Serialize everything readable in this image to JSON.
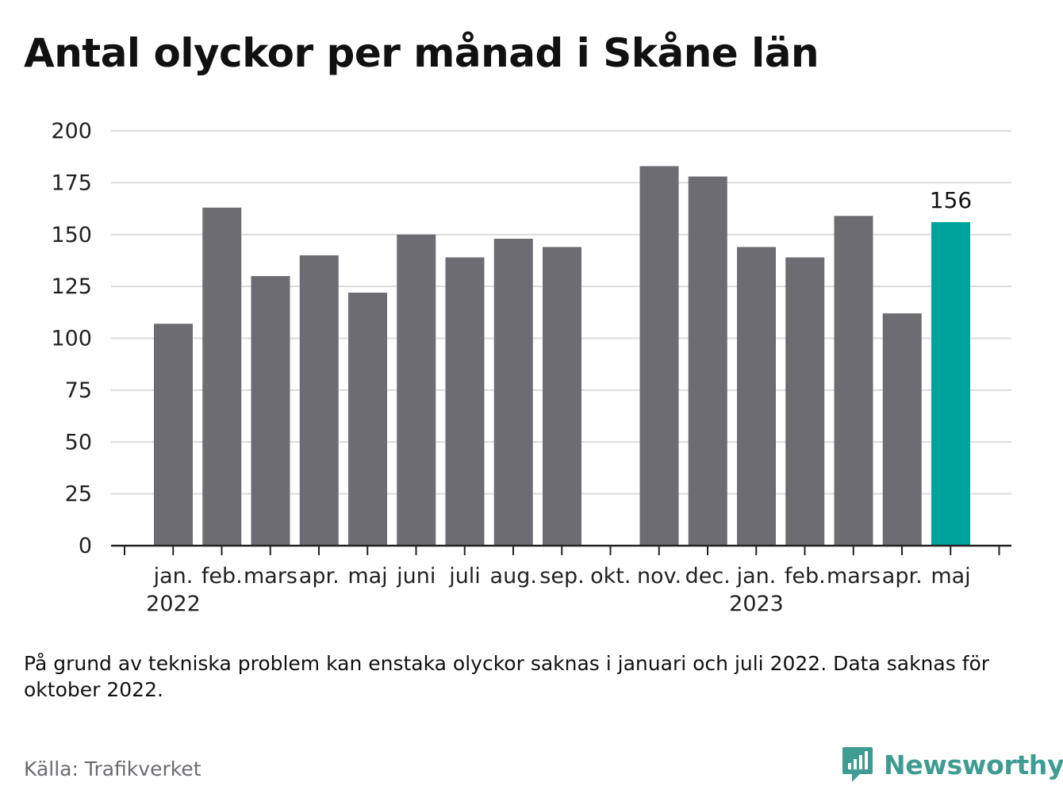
{
  "title": "Antal olyckor per månad i Skåne län",
  "note": "På grund av tekniska problem kan enstaka olyckor saknas i januari och juli 2022. Data saknas för oktober 2022.",
  "source": "Källa: Trafikverket",
  "brand": {
    "name": "Newsworthy",
    "icon": "newsworthy-logo-icon",
    "color": "#3f9c93"
  },
  "colors": {
    "bar": "#6d6c72",
    "highlight": "#00a39b",
    "grid": "#dcdcdc",
    "axis": "#222222"
  },
  "chart_data": {
    "type": "bar",
    "categories": [
      "jan.",
      "feb.",
      "mars",
      "apr.",
      "maj",
      "juni",
      "juli",
      "aug.",
      "sep.",
      "okt.",
      "nov.",
      "dec.",
      "jan.",
      "feb.",
      "mars",
      "apr.",
      "maj"
    ],
    "year_labels": [
      {
        "label": "2022",
        "category_index": 0
      },
      {
        "label": "2023",
        "category_index": 12
      }
    ],
    "values": [
      107,
      163,
      130,
      140,
      122,
      150,
      139,
      148,
      144,
      null,
      183,
      178,
      144,
      139,
      159,
      112,
      156
    ],
    "highlight_index": 16,
    "highlight_label": "156",
    "ylim": [
      0,
      200
    ],
    "yticks": [
      0,
      25,
      50,
      75,
      100,
      125,
      150,
      175,
      200
    ],
    "grid": true
  }
}
